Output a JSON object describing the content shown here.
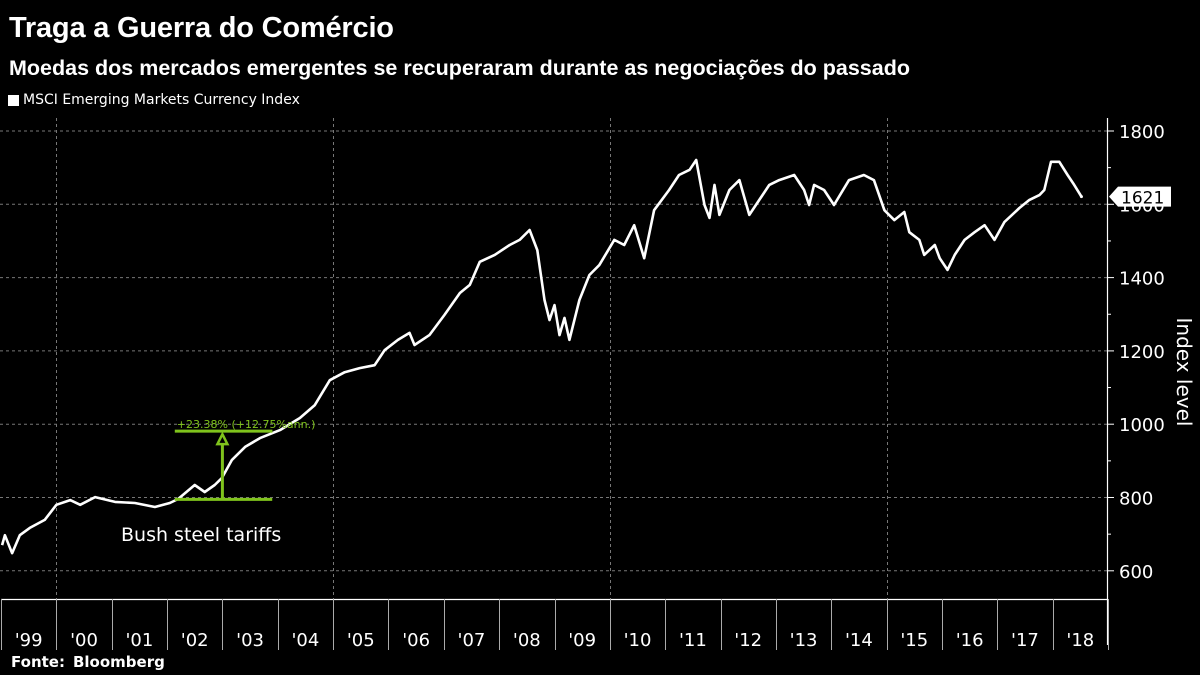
{
  "header": {
    "title": "Traga a Guerra do Comércio",
    "subtitle": "Moedas dos mercados emergentes se recuperaram durante as negociações do passado",
    "legend_label": "MSCI Emerging Markets Currency Index"
  },
  "footer": {
    "source_label": "Fonte:",
    "source_name": "Bloomberg"
  },
  "colors": {
    "background": "#000000",
    "series": "#ffffff",
    "annotation": "#7fc31c",
    "grid": "#777777"
  },
  "chart_data": {
    "type": "line",
    "title": "Traga a Guerra do Comércio",
    "subtitle": "Moedas dos mercados emergentes se recuperaram durante as negociações do passado",
    "xlabel": "",
    "ylabel": "Index level",
    "ylim": [
      520,
      1840
    ],
    "xlim": [
      1999.0,
      2019.0
    ],
    "yticks": [
      600,
      800,
      1000,
      1200,
      1400,
      1600,
      1800
    ],
    "xtick_labels": [
      "'99",
      "'00",
      "'01",
      "'02",
      "'03",
      "'04",
      "'05",
      "'06",
      "'07",
      "'08",
      "'09",
      "'10",
      "'11",
      "'12",
      "'13",
      "'14",
      "'15",
      "'16",
      "'17",
      "'18"
    ],
    "x_gridlines": [
      2000,
      2005,
      2010,
      2015
    ],
    "grid": true,
    "y_axis_side": "right",
    "legend_position": "top-left",
    "last_value_label": "1621",
    "series": [
      {
        "name": "MSCI Emerging Markets Currency Index",
        "x": [
          1999.02,
          1999.07,
          1999.2,
          1999.34,
          1999.52,
          1999.79,
          2000.0,
          2000.25,
          2000.43,
          2000.7,
          2001.06,
          2001.42,
          2001.78,
          2002.05,
          2002.2,
          2002.5,
          2002.68,
          2002.86,
          2002.99,
          2003.17,
          2003.41,
          2003.68,
          2004.04,
          2004.4,
          2004.67,
          2004.94,
          2005.21,
          2005.48,
          2005.75,
          2005.93,
          2006.17,
          2006.38,
          2006.47,
          2006.74,
          2007.01,
          2007.29,
          2007.47,
          2007.65,
          2007.92,
          2008.19,
          2008.37,
          2008.55,
          2008.69,
          2008.82,
          2008.91,
          2009.0,
          2009.09,
          2009.18,
          2009.27,
          2009.45,
          2009.63,
          2009.81,
          2010.08,
          2010.26,
          2010.44,
          2010.62,
          2010.8,
          2011.07,
          2011.25,
          2011.44,
          2011.56,
          2011.71,
          2011.8,
          2011.89,
          2011.98,
          2012.16,
          2012.34,
          2012.52,
          2012.7,
          2012.88,
          2013.06,
          2013.33,
          2013.51,
          2013.6,
          2013.69,
          2013.87,
          2014.05,
          2014.32,
          2014.59,
          2014.77,
          2014.96,
          2015.14,
          2015.32,
          2015.41,
          2015.59,
          2015.68,
          2015.87,
          2015.96,
          2016.1,
          2016.23,
          2016.41,
          2016.59,
          2016.77,
          2016.95,
          2017.13,
          2017.4,
          2017.58,
          2017.76,
          2017.85,
          2017.97,
          2018.12,
          2018.27,
          2018.39,
          2018.52
        ],
        "y": [
          670,
          697,
          648,
          697,
          717,
          739,
          780,
          793,
          780,
          801,
          788,
          785,
          774,
          785,
          796,
          834,
          815,
          834,
          853,
          902,
          938,
          962,
          984,
          1017,
          1052,
          1120,
          1142,
          1153,
          1161,
          1202,
          1230,
          1249,
          1216,
          1243,
          1298,
          1358,
          1380,
          1443,
          1462,
          1489,
          1503,
          1530,
          1475,
          1339,
          1284,
          1325,
          1243,
          1290,
          1230,
          1339,
          1407,
          1434,
          1503,
          1489,
          1543,
          1453,
          1584,
          1639,
          1680,
          1694,
          1721,
          1598,
          1563,
          1653,
          1571,
          1639,
          1666,
          1571,
          1612,
          1653,
          1666,
          1680,
          1639,
          1598,
          1653,
          1639,
          1598,
          1666,
          1680,
          1666,
          1584,
          1557,
          1579,
          1524,
          1503,
          1462,
          1489,
          1453,
          1421,
          1462,
          1503,
          1524,
          1543,
          1503,
          1552,
          1590,
          1612,
          1625,
          1639,
          1716,
          1716,
          1680,
          1653,
          1621
        ]
      }
    ],
    "annotations": [
      {
        "type": "range",
        "label": "Bush steel tariffs",
        "change_text": "+23.38% (+12.75%ann.)",
        "x_start": 2002.14,
        "x_end": 2003.9,
        "x_arrow": 2003.0,
        "y_from": 795,
        "y_to": 981
      }
    ]
  }
}
